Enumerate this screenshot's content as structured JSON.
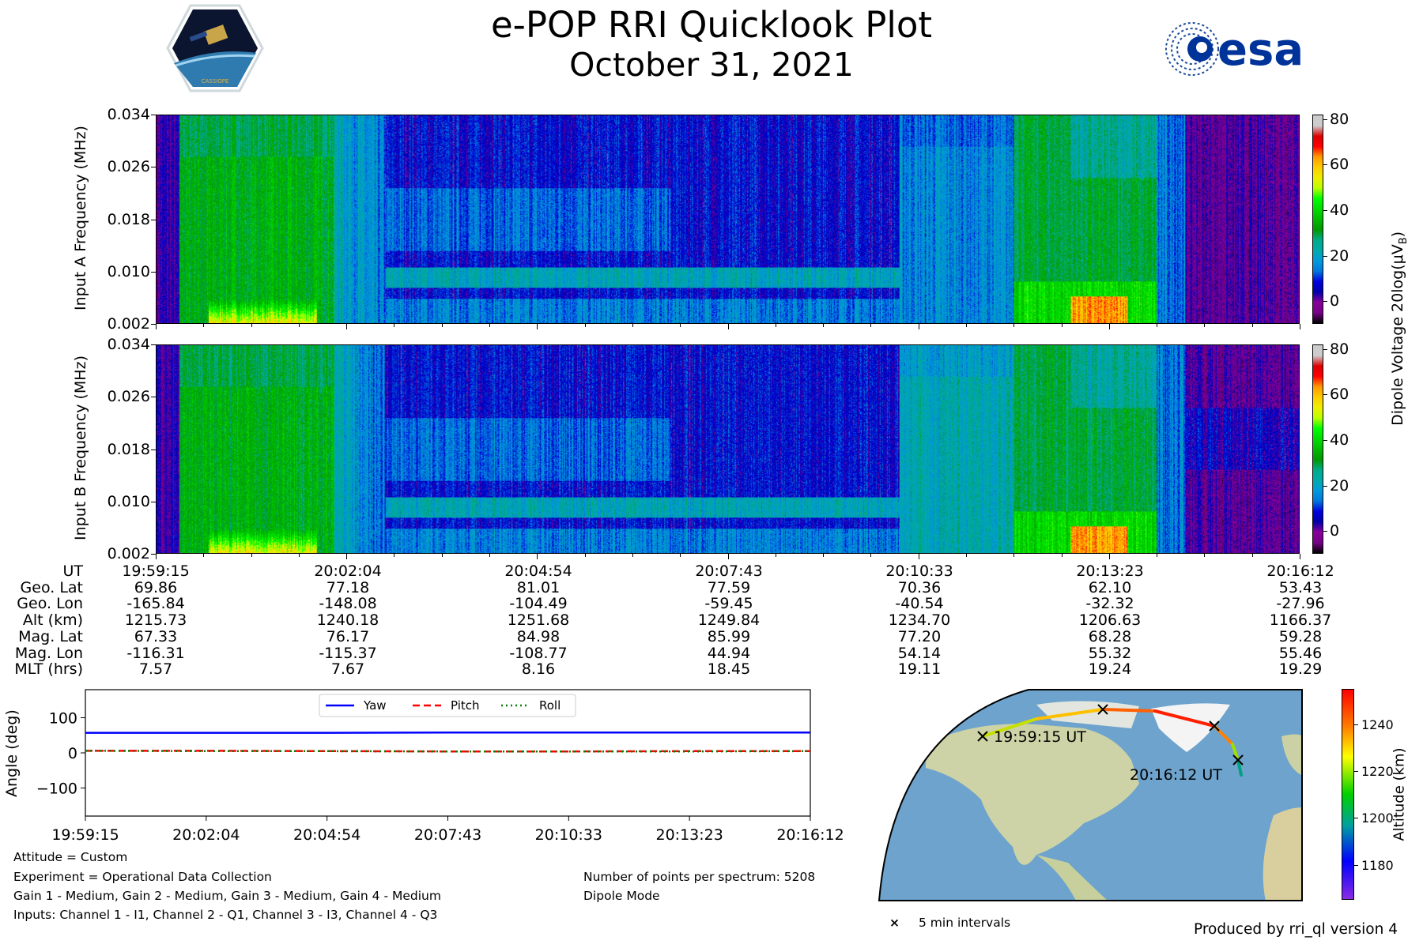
{
  "header": {
    "title": "e-POP RRI Quicklook Plot",
    "date": "October 31, 2021",
    "left_logo": "CASSIOPE",
    "right_logo": "esa"
  },
  "chart_data": [
    {
      "type": "heatmap",
      "name": "Input A spectrogram",
      "ylabel": "Input A Frequency (MHz)",
      "yticks": [
        "0.002",
        "0.010",
        "0.018",
        "0.026",
        "0.034"
      ],
      "ylim": [
        0.002,
        0.034
      ],
      "x": [
        "19:59:15",
        "20:02:04",
        "20:04:54",
        "20:07:43",
        "20:10:33",
        "20:13:23",
        "20:16:12"
      ],
      "colorbar": {
        "ticks": [
          "0",
          "20",
          "40",
          "60",
          "80"
        ],
        "range": [
          -10,
          82
        ],
        "colormap": "nipy_spectral"
      }
    },
    {
      "type": "heatmap",
      "name": "Input B spectrogram",
      "ylabel": "Input B Frequency (MHz)",
      "yticks": [
        "0.002",
        "0.010",
        "0.018",
        "0.026",
        "0.034"
      ],
      "ylim": [
        0.002,
        0.034
      ],
      "x": [
        "19:59:15",
        "20:02:04",
        "20:04:54",
        "20:07:43",
        "20:10:33",
        "20:13:23",
        "20:16:12"
      ],
      "colorbar": {
        "ticks": [
          "0",
          "20",
          "40",
          "60",
          "80"
        ],
        "range": [
          -10,
          82
        ],
        "colormap": "nipy_spectral"
      }
    },
    {
      "type": "line",
      "name": "Attitude",
      "ylabel": "Angle (deg)",
      "yticks": [
        "100",
        "0",
        "−100"
      ],
      "ylim": [
        -180,
        180
      ],
      "xticks": [
        "19:59:15",
        "20:02:04",
        "20:04:54",
        "20:07:43",
        "20:10:33",
        "20:13:23",
        "20:16:12"
      ],
      "series": [
        {
          "name": "Yaw",
          "color": "#0000ff",
          "style": "solid",
          "values": [
            57,
            57,
            57,
            58,
            58,
            58,
            58
          ]
        },
        {
          "name": "Pitch",
          "color": "#ff0000",
          "style": "dashed",
          "values": [
            6,
            6,
            5,
            4,
            4,
            5,
            5
          ]
        },
        {
          "name": "Roll",
          "color": "#008000",
          "style": "dotted",
          "values": [
            6,
            5,
            5,
            4,
            4,
            4,
            5
          ]
        }
      ]
    }
  ],
  "colorbar_label": "Dipole Voltage 20log(μV",
  "colorbar_label_sub": "B",
  "colorbar_label_end": ")",
  "table": {
    "row_labels": [
      "UT",
      "Geo. Lat",
      "Geo. Lon",
      "Alt (km)",
      "Mag. Lat",
      "Mag. Lon",
      "MLT (hrs)"
    ],
    "columns": [
      [
        "19:59:15",
        "69.86",
        "-165.84",
        "1215.73",
        "67.33",
        "-116.31",
        "7.57"
      ],
      [
        "20:02:04",
        "77.18",
        "-148.08",
        "1240.18",
        "76.17",
        "-115.37",
        "7.67"
      ],
      [
        "20:04:54",
        "81.01",
        "-104.49",
        "1251.68",
        "84.98",
        "-108.77",
        "8.16"
      ],
      [
        "20:07:43",
        "77.59",
        "-59.45",
        "1249.84",
        "85.99",
        "44.94",
        "18.45"
      ],
      [
        "20:10:33",
        "70.36",
        "-40.54",
        "1234.70",
        "77.20",
        "54.14",
        "19.11"
      ],
      [
        "20:13:23",
        "62.10",
        "-32.32",
        "1206.63",
        "68.28",
        "55.32",
        "19.24"
      ],
      [
        "20:16:12",
        "53.43",
        "-27.96",
        "1166.37",
        "59.28",
        "55.46",
        "19.29"
      ]
    ]
  },
  "info": {
    "attitude": "Attitude = Custom",
    "experiment": "Experiment = Operational Data Collection",
    "gains": "Gain 1 - Medium, Gain 2 - Medium, Gain 3 - Medium, Gain 4 - Medium",
    "inputs": "Inputs: Channel 1 - I1, Channel 2 - Q1, Channel 3 - I3, Channel 4 - Q3",
    "points": "Number of points per spectrum: 5208",
    "mode": "Dipole Mode"
  },
  "map": {
    "start_label": "19:59:15 UT",
    "end_label": "20:16:12 UT",
    "legend_marker": "×",
    "legend_label": "5 min intervals",
    "colorbar_label": "Altitude (km)",
    "colorbar_ticks": [
      "1240",
      "1220",
      "1200",
      "1180"
    ],
    "colorbar_range": [
      1165,
      1255
    ]
  },
  "footer": "Produced by rri_ql version 4"
}
